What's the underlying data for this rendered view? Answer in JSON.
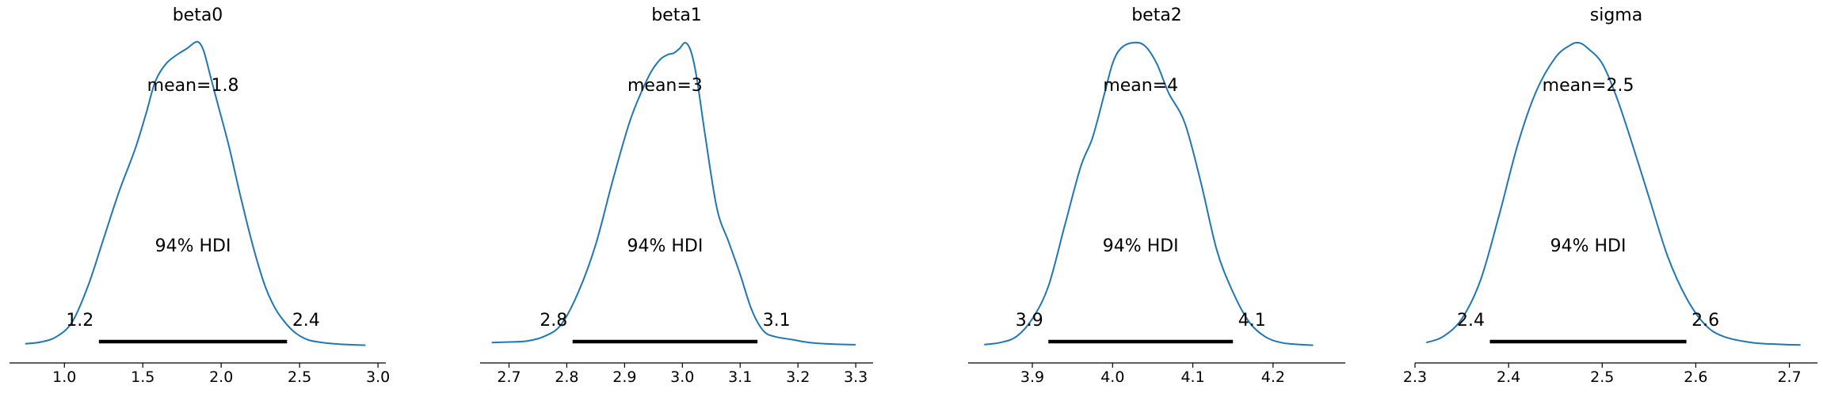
{
  "chart_data": [
    {
      "type": "line",
      "title": "beta0",
      "xlim": [
        0.65,
        3.05
      ],
      "xticks": [
        "1.0",
        "1.5",
        "2.0",
        "2.5",
        "3.0"
      ],
      "xtick_values": [
        1.0,
        1.5,
        2.0,
        2.5,
        3.0
      ],
      "mean_label": "mean=1.8",
      "hdi_label": "94% HDI",
      "hdi": [
        1.22,
        2.42
      ],
      "hdi_low_label": "1.2",
      "hdi_high_label": "2.4",
      "kde": {
        "x": [
          0.75,
          0.85,
          0.95,
          1.05,
          1.15,
          1.25,
          1.35,
          1.45,
          1.52,
          1.58,
          1.65,
          1.72,
          1.78,
          1.83,
          1.86,
          1.89,
          1.93,
          1.98,
          2.05,
          2.12,
          2.2,
          2.28,
          2.35,
          2.42,
          2.48,
          2.55,
          2.62,
          2.72,
          2.82,
          2.92
        ],
        "density": [
          0.006,
          0.012,
          0.03,
          0.08,
          0.2,
          0.36,
          0.52,
          0.66,
          0.78,
          0.89,
          0.95,
          0.98,
          1.0,
          1.02,
          1.02,
          0.99,
          0.91,
          0.81,
          0.67,
          0.51,
          0.34,
          0.2,
          0.12,
          0.07,
          0.04,
          0.02,
          0.012,
          0.006,
          0.003,
          0.001
        ]
      }
    },
    {
      "type": "line",
      "title": "beta1",
      "xlim": [
        2.65,
        3.33
      ],
      "xticks": [
        "2.7",
        "2.8",
        "2.9",
        "3.0",
        "3.1",
        "3.2",
        "3.3"
      ],
      "xtick_values": [
        2.7,
        2.8,
        2.9,
        3.0,
        3.1,
        3.2,
        3.3
      ],
      "mean_label": "mean=3",
      "hdi_label": "94% HDI",
      "hdi": [
        2.81,
        3.13
      ],
      "hdi_low_label": "2.8",
      "hdi_high_label": "3.1",
      "kde": {
        "x": [
          2.67,
          2.7,
          2.73,
          2.76,
          2.79,
          2.82,
          2.85,
          2.88,
          2.91,
          2.94,
          2.96,
          2.975,
          2.985,
          2.995,
          3.005,
          3.015,
          3.025,
          3.04,
          3.06,
          3.08,
          3.1,
          3.12,
          3.14,
          3.16,
          3.19,
          3.22,
          3.26,
          3.3
        ],
        "density": [
          0.01,
          0.012,
          0.015,
          0.03,
          0.07,
          0.18,
          0.34,
          0.56,
          0.76,
          0.9,
          0.96,
          0.98,
          0.985,
          1.0,
          1.02,
          0.99,
          0.9,
          0.7,
          0.46,
          0.35,
          0.24,
          0.12,
          0.05,
          0.03,
          0.02,
          0.01,
          0.005,
          0.003
        ]
      }
    },
    {
      "type": "line",
      "title": "beta2",
      "xlim": [
        3.82,
        4.29
      ],
      "xticks": [
        "3.9",
        "4.0",
        "4.1",
        "4.2"
      ],
      "xtick_values": [
        3.9,
        4.0,
        4.1,
        4.2
      ],
      "mean_label": "mean=4",
      "hdi_label": "94% HDI",
      "hdi": [
        3.92,
        4.15
      ],
      "hdi_low_label": "3.9",
      "hdi_high_label": "4.1",
      "kde": {
        "x": [
          3.84,
          3.86,
          3.88,
          3.9,
          3.92,
          3.94,
          3.96,
          3.975,
          3.99,
          4.0,
          4.01,
          4.025,
          4.04,
          4.055,
          4.07,
          4.09,
          4.11,
          4.13,
          4.15,
          4.17,
          4.19,
          4.21,
          4.23,
          4.25
        ],
        "density": [
          0.003,
          0.01,
          0.03,
          0.09,
          0.2,
          0.4,
          0.6,
          0.7,
          0.85,
          0.95,
          1.0,
          1.02,
          1.01,
          0.95,
          0.85,
          0.75,
          0.55,
          0.32,
          0.18,
          0.08,
          0.03,
          0.01,
          0.004,
          0.001
        ]
      }
    },
    {
      "type": "line",
      "title": "sigma",
      "xlim": [
        2.3,
        2.73
      ],
      "xticks": [
        "2.3",
        "2.4",
        "2.5",
        "2.6",
        "2.7"
      ],
      "xtick_values": [
        2.3,
        2.4,
        2.5,
        2.6,
        2.7
      ],
      "mean_label": "mean=2.5",
      "hdi_label": "94% HDI",
      "hdi": [
        2.38,
        2.59
      ],
      "hdi_low_label": "2.4",
      "hdi_high_label": "2.6",
      "kde": {
        "x": [
          2.312,
          2.33,
          2.35,
          2.37,
          2.39,
          2.41,
          2.43,
          2.45,
          2.465,
          2.475,
          2.485,
          2.5,
          2.515,
          2.53,
          2.55,
          2.57,
          2.59,
          2.61,
          2.63,
          2.66,
          2.69,
          2.712
        ],
        "density": [
          0.01,
          0.03,
          0.09,
          0.22,
          0.44,
          0.68,
          0.86,
          0.97,
          1.01,
          1.02,
          1.0,
          0.95,
          0.84,
          0.7,
          0.5,
          0.3,
          0.16,
          0.07,
          0.03,
          0.01,
          0.004,
          0.002
        ]
      }
    }
  ]
}
